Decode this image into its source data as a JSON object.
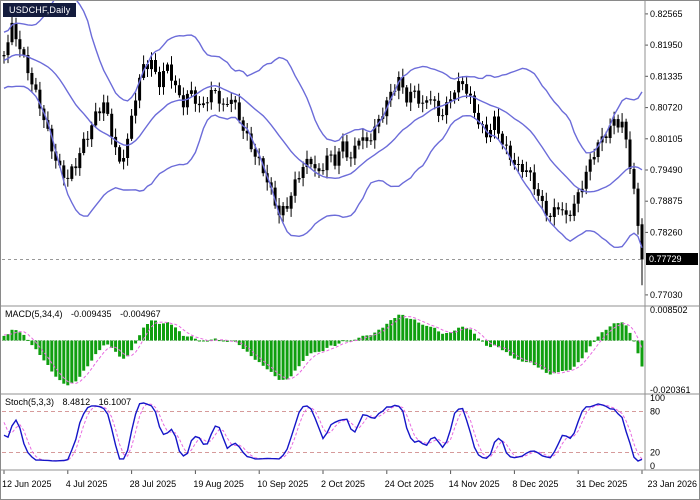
{
  "window": {
    "symbol_label": "USDCHF,Daily"
  },
  "colors": {
    "background": "#ffffff",
    "border": "#8a8a8a",
    "candle": "#000000",
    "bollinger": "#6c6cd9",
    "macd_bar": "#0f9f0f",
    "signal": "#e86ae0",
    "stoch_main": "#1515c8",
    "level_line": "#c87878",
    "price_tag_bg": "#000000",
    "price_tag_text": "#ffffff",
    "badge_bg": "#141c3d",
    "axis_text": "#000000"
  },
  "chart_data": {
    "type": "candlestick",
    "symbol": "USDCHF",
    "timeframe": "Daily",
    "n_candles": 161,
    "price_range": [
      0.7689,
      0.8276
    ],
    "current_price": "0.77729",
    "y_ticks_main": [
      "0.82565",
      "0.81950",
      "0.81335",
      "0.80720",
      "0.80105",
      "0.79490",
      "0.78875",
      "0.78260",
      "0.77030"
    ],
    "x_labels": [
      {
        "index": 0,
        "label": "12 Jun 2025"
      },
      {
        "index": 16,
        "label": "4 Jul 2025"
      },
      {
        "index": 32,
        "label": "28 Jul 2025"
      },
      {
        "index": 48,
        "label": "19 Aug 2025"
      },
      {
        "index": 64,
        "label": "10 Sep 2025"
      },
      {
        "index": 80,
        "label": "2 Oct 2025"
      },
      {
        "index": 96,
        "label": "24 Oct 2025"
      },
      {
        "index": 112,
        "label": "14 Nov 2025"
      },
      {
        "index": 128,
        "label": "8 Dec 2025"
      },
      {
        "index": 144,
        "label": "31 Dec 2025"
      },
      {
        "index": 160,
        "label": "23 Jan 2026"
      }
    ],
    "close_keypoints": [
      [
        0,
        0.8175
      ],
      [
        2,
        0.8225
      ],
      [
        4,
        0.8195
      ],
      [
        6,
        0.815
      ],
      [
        8,
        0.8095
      ],
      [
        10,
        0.8045
      ],
      [
        12,
        0.7995
      ],
      [
        14,
        0.7955
      ],
      [
        16,
        0.793
      ],
      [
        18,
        0.7955
      ],
      [
        20,
        0.8005
      ],
      [
        23,
        0.806
      ],
      [
        25,
        0.8075
      ],
      [
        27,
        0.802
      ],
      [
        29,
        0.7965
      ],
      [
        31,
        0.801
      ],
      [
        33,
        0.809
      ],
      [
        35,
        0.815
      ],
      [
        37,
        0.8165
      ],
      [
        39,
        0.8125
      ],
      [
        41,
        0.815
      ],
      [
        43,
        0.8105
      ],
      [
        45,
        0.8085
      ],
      [
        47,
        0.811
      ],
      [
        49,
        0.8065
      ],
      [
        51,
        0.8085
      ],
      [
        53,
        0.811
      ],
      [
        55,
        0.8075
      ],
      [
        57,
        0.809
      ],
      [
        59,
        0.8045
      ],
      [
        61,
        0.8015
      ],
      [
        63,
        0.7985
      ],
      [
        65,
        0.7945
      ],
      [
        67,
        0.79
      ],
      [
        69,
        0.7865
      ],
      [
        71,
        0.7885
      ],
      [
        73,
        0.792
      ],
      [
        75,
        0.795
      ],
      [
        77,
        0.797
      ],
      [
        79,
        0.7945
      ],
      [
        81,
        0.7975
      ],
      [
        83,
        0.796
      ],
      [
        85,
        0.8
      ],
      [
        87,
        0.7975
      ],
      [
        89,
        0.8015
      ],
      [
        91,
        0.7995
      ],
      [
        93,
        0.803
      ],
      [
        95,
        0.807
      ],
      [
        97,
        0.81
      ],
      [
        99,
        0.812
      ],
      [
        101,
        0.809
      ],
      [
        103,
        0.811
      ],
      [
        105,
        0.8075
      ],
      [
        107,
        0.809
      ],
      [
        109,
        0.8055
      ],
      [
        111,
        0.808
      ],
      [
        113,
        0.811
      ],
      [
        115,
        0.8115
      ],
      [
        117,
        0.8085
      ],
      [
        119,
        0.805
      ],
      [
        121,
        0.802
      ],
      [
        123,
        0.804
      ],
      [
        125,
        0.8
      ],
      [
        127,
        0.798
      ],
      [
        129,
        0.7955
      ],
      [
        131,
        0.7945
      ],
      [
        133,
        0.7915
      ],
      [
        135,
        0.7885
      ],
      [
        137,
        0.786
      ],
      [
        139,
        0.7875
      ],
      [
        141,
        0.785
      ],
      [
        143,
        0.7885
      ],
      [
        145,
        0.7925
      ],
      [
        147,
        0.796
      ],
      [
        149,
        0.7995
      ],
      [
        151,
        0.8025
      ],
      [
        153,
        0.805
      ],
      [
        155,
        0.8035
      ],
      [
        156,
        0.8
      ],
      [
        157,
        0.7955
      ],
      [
        158,
        0.7905
      ],
      [
        159,
        0.784
      ],
      [
        160,
        0.7773
      ]
    ],
    "last_candle": {
      "o": 0.7842,
      "h": 0.7854,
      "l": 0.7722,
      "c": 0.77729
    },
    "indicators": {
      "bollinger": {
        "period": 20,
        "deviation": 2
      },
      "macd": {
        "label": "MACD(5,34,4)",
        "value_main": "-0.009435",
        "value_signal": "-0.004967",
        "fast": 5,
        "slow": 34,
        "signal_period": 4,
        "y_tick_top": "0.008502",
        "y_tick_bottom": "-0.020361"
      },
      "stoch": {
        "label": "Stoch(5,3,3)",
        "value_main": "8.4812",
        "value_signal": "16.1007",
        "k_period": 5,
        "d_period": 3,
        "slowing": 3,
        "y_ticks": [
          "100",
          "80",
          "20",
          "0"
        ],
        "levels": [
          80,
          20
        ]
      }
    }
  }
}
